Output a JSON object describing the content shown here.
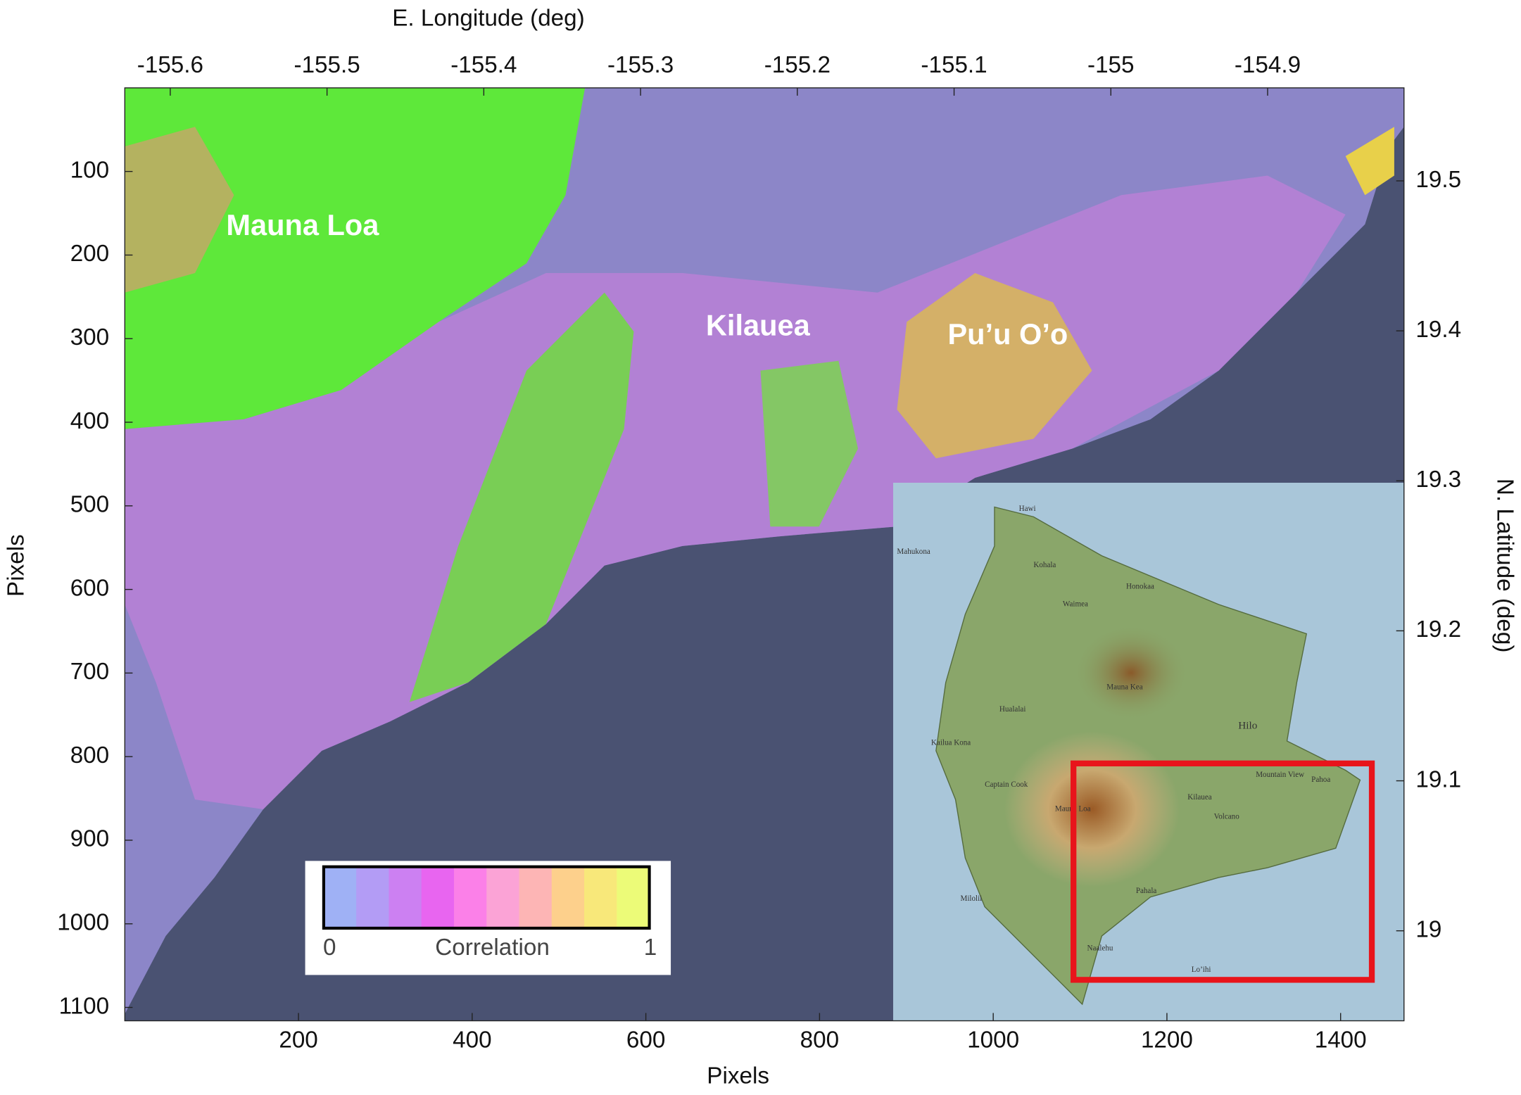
{
  "axes": {
    "x_label": "Pixels",
    "y_label": "Pixels",
    "top_label": "E. Longitude (deg)",
    "right_label": "N. Latitude (deg)",
    "xlim": [
      0,
      1473
    ],
    "xticks": [
      200,
      400,
      600,
      800,
      1000,
      1200,
      1400
    ],
    "ylim": [
      0,
      1116
    ],
    "yticks": [
      100,
      200,
      300,
      400,
      500,
      600,
      700,
      800,
      900,
      1000,
      1100
    ],
    "lonlim": [
      -155.629,
      -154.813
    ],
    "lonticks": [
      -155.6,
      -155.5,
      -155.4,
      -155.3,
      -155.2,
      -155.1,
      -155,
      -154.9
    ],
    "latlim": [
      19.562,
      18.94
    ],
    "latticks": [
      19.5,
      19.4,
      19.3,
      19.2,
      19.1,
      19
    ]
  },
  "annotations": [
    "Mauna Loa",
    "Kilauea",
    "Pu’u O’o"
  ],
  "legend": {
    "colors": [
      "#9fb1f5",
      "#b39cf5",
      "#cc80f2",
      "#e865f0",
      "#fb80e8",
      "#fba3d6",
      "#fdb5b5",
      "#fdd08c",
      "#f8e87a",
      "#ecfb78"
    ],
    "min_label": "0",
    "title": "Correlation",
    "max_label": "1"
  },
  "inset": {
    "labels": [
      "Hawi",
      "Kohala",
      "Waimea",
      "Honokaa",
      "Mauna Kea",
      "Hualalai",
      "Kailua Kona",
      "Captain Cook",
      "Hilo",
      "Mauna Loa",
      "Kilauea",
      "Volcano",
      "Mountain View",
      "Pahoa",
      "Pahala",
      "Naalehu",
      "Milolii",
      "Lo’ihi",
      "Mahukona"
    ]
  }
}
